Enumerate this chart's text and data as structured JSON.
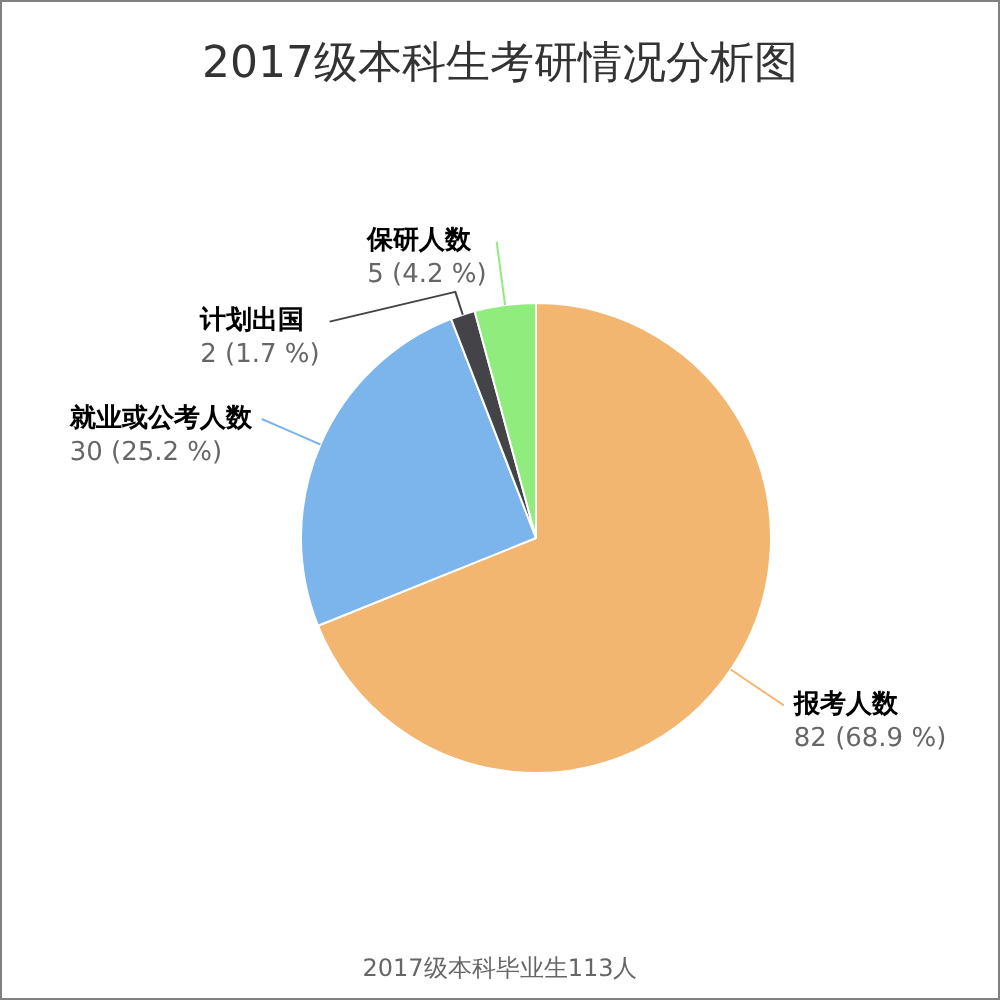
{
  "chart_data": {
    "type": "pie",
    "title": "2017级本科生考研情况分析图",
    "categories": [
      "报考人数",
      "就业或公考人数",
      "计划出国",
      "保研人数"
    ],
    "values": [
      82,
      30,
      2,
      5
    ],
    "colors": [
      "#f3b671",
      "#7cb5ec",
      "#434348",
      "#90ed7d"
    ],
    "value_labels": [
      "82 (68.9 %)",
      "30 (25.2 %)",
      "2 (1.7 %)",
      "5 (4.2 %)"
    ],
    "annotations": [
      "2017级本科毕业生113人"
    ]
  }
}
